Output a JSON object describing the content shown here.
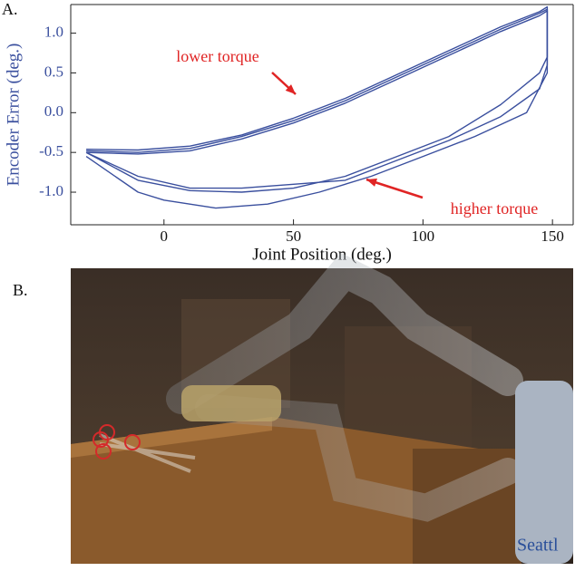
{
  "panel_a_label": "A.",
  "panel_b_label": "B.",
  "chart_data": {
    "type": "line",
    "xlabel": "Joint Position (deg.)",
    "ylabel": "Encoder Error (deg.)",
    "xlim": [
      -36,
      158
    ],
    "ylim": [
      -1.41,
      1.36
    ],
    "xticks": [
      0,
      50,
      100,
      150
    ],
    "yticks": [
      {
        "value": 1.0,
        "label": "1.0"
      },
      0.5,
      {
        "value": 0.0,
        "label": "0.0"
      },
      -0.5,
      {
        "value": -1.0,
        "label": "-1.0"
      }
    ],
    "annotations": [
      "lower torque",
      "higher torque"
    ],
    "series": [
      {
        "color": "#3a4f9e",
        "x": [
          -30,
          -10,
          10,
          30,
          50,
          70,
          90,
          110,
          130,
          145,
          148,
          148,
          145,
          130,
          110,
          90,
          70,
          50,
          30,
          10,
          -10,
          -30
        ],
        "values": [
          -0.48,
          -0.5,
          -0.45,
          -0.3,
          -0.1,
          0.15,
          0.45,
          0.75,
          1.05,
          1.25,
          1.3,
          0.7,
          0.5,
          0.1,
          -0.3,
          -0.55,
          -0.8,
          -0.95,
          -1.0,
          -0.98,
          -0.85,
          -0.5
        ]
      },
      {
        "color": "#3a4f9e",
        "x": [
          -30,
          -10,
          10,
          30,
          50,
          70,
          90,
          110,
          130,
          145,
          148,
          148,
          145,
          130,
          110,
          90,
          70,
          50,
          30,
          10,
          -10,
          -30
        ],
        "values": [
          -0.5,
          -0.52,
          -0.48,
          -0.33,
          -0.13,
          0.12,
          0.42,
          0.72,
          1.02,
          1.22,
          1.28,
          0.6,
          0.3,
          -0.05,
          -0.35,
          -0.6,
          -0.85,
          -0.9,
          -0.95,
          -0.95,
          -0.8,
          -0.5
        ]
      },
      {
        "color": "#3a4f9e",
        "x": [
          -30,
          -10,
          10,
          30,
          50,
          70,
          90,
          110,
          130,
          145,
          148,
          148,
          140,
          120,
          100,
          80,
          60,
          40,
          20,
          0,
          -10,
          -30
        ],
        "values": [
          -0.46,
          -0.47,
          -0.42,
          -0.28,
          -0.07,
          0.18,
          0.48,
          0.78,
          1.08,
          1.27,
          1.33,
          0.5,
          0.0,
          -0.3,
          -0.55,
          -0.8,
          -1.0,
          -1.15,
          -1.2,
          -1.1,
          -1.0,
          -0.55
        ]
      }
    ]
  },
  "photo_text": "Seattl"
}
